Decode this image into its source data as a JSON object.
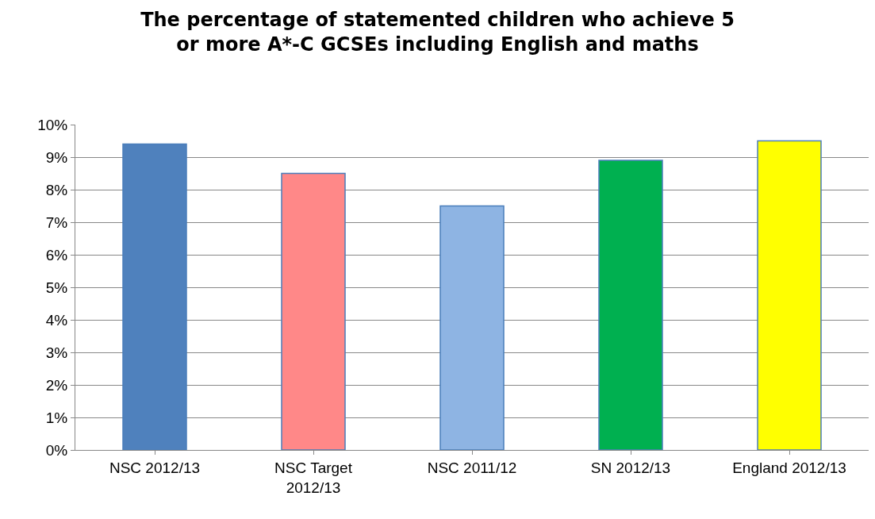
{
  "chart_data": {
    "type": "bar",
    "title": "The percentage of statemented children who achieve 5\nor more A*-C GCSEs including English and maths",
    "categories": [
      "NSC 2012/13",
      "NSC Target\n2012/13",
      "NSC 2011/12",
      "SN 2012/13",
      "England 2012/13"
    ],
    "values": [
      9.4,
      8.5,
      7.5,
      8.9,
      9.5
    ],
    "colors": [
      "#4f81bd",
      "#ff8888",
      "#8eb4e3",
      "#00b050",
      "#ffff00"
    ],
    "ylim": [
      0,
      10
    ],
    "yticks": [
      {
        "value": 0,
        "label": "0%"
      },
      {
        "value": 1,
        "label": "1%"
      },
      {
        "value": 2,
        "label": "2%"
      },
      {
        "value": 3,
        "label": "3%"
      },
      {
        "value": 4,
        "label": "4%"
      },
      {
        "value": 5,
        "label": "5%"
      },
      {
        "value": 6,
        "label": "6%"
      },
      {
        "value": 7,
        "label": "7%"
      },
      {
        "value": 8,
        "label": "8%"
      },
      {
        "value": 9,
        "label": "9%"
      },
      {
        "value": 10,
        "label": "10%"
      }
    ],
    "grid": "y"
  }
}
